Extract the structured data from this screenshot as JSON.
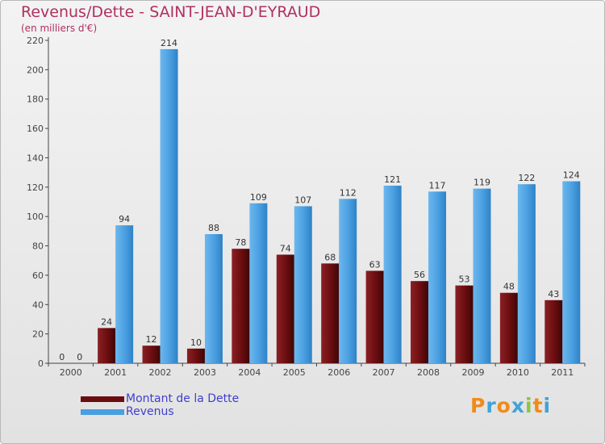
{
  "page": {
    "title": "Revenus/Dette - SAINT-JEAN-D'EYRAUD",
    "subtitle": "(en milliers d'€)"
  },
  "chart_data": {
    "type": "bar",
    "categories": [
      "2000",
      "2001",
      "2002",
      "2003",
      "2004",
      "2005",
      "2006",
      "2007",
      "2008",
      "2009",
      "2010",
      "2011"
    ],
    "series": [
      {
        "name": "Montant de la Dette",
        "color": "#6b0d10",
        "values": [
          0,
          24,
          12,
          10,
          78,
          74,
          68,
          63,
          56,
          53,
          48,
          43
        ]
      },
      {
        "name": "Revenus",
        "color": "#4a9fe0",
        "values": [
          0,
          94,
          214,
          88,
          109,
          107,
          112,
          121,
          117,
          119,
          122,
          124
        ]
      }
    ],
    "ylim": [
      0,
      220
    ],
    "yticks": [
      0,
      20,
      40,
      60,
      80,
      100,
      120,
      140,
      160,
      180,
      200,
      220
    ],
    "title": "Revenus/Dette - SAINT-JEAN-D'EYRAUD",
    "ylabel": "(en milliers d'€)",
    "xlabel": "",
    "grid": false,
    "legend_position": "bottom-left"
  },
  "legend": {
    "items": [
      {
        "label": "Montant de la Dette",
        "color": "#6b0d10"
      },
      {
        "label": "Revenus",
        "color": "#4a9fe0"
      }
    ]
  },
  "logo": {
    "letters": [
      "P",
      "r",
      "o",
      "x",
      "i",
      "t",
      "i"
    ],
    "colors": [
      "#f08b1a",
      "#3fa4d8",
      "#f08b1a",
      "#3fa4d8",
      "#8cc63f",
      "#f08b1a",
      "#3fa4d8"
    ]
  }
}
